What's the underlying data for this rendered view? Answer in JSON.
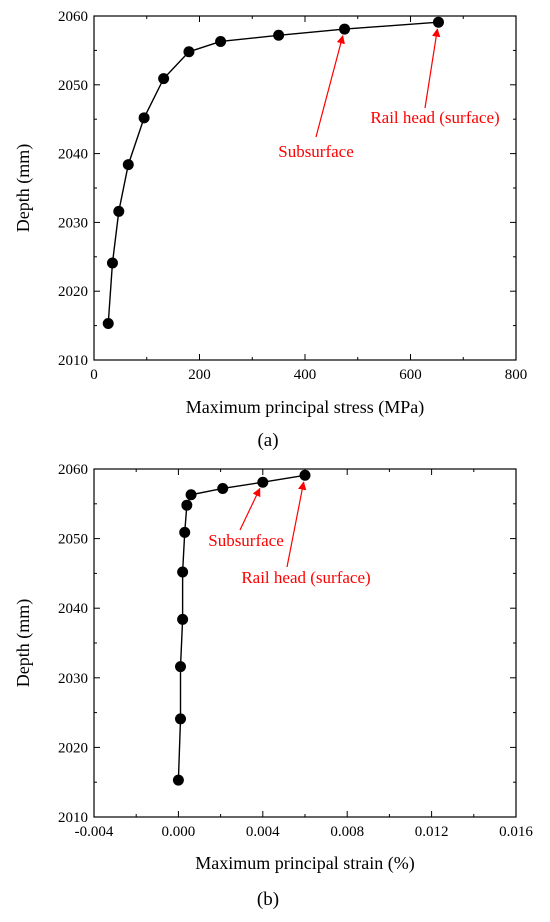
{
  "chart_data": [
    {
      "type": "line",
      "panel_label": "(a)",
      "xlabel": "Maximum principal stress (MPa)",
      "ylabel": "Depth (mm)",
      "xlim": [
        0,
        800
      ],
      "ylim": [
        2010,
        2060
      ],
      "xticks": [
        "0",
        "200",
        "400",
        "600",
        "800"
      ],
      "yticks": [
        "2010",
        "2020",
        "2030",
        "2040",
        "2050",
        "2060"
      ],
      "grid": false,
      "series": [
        {
          "x": [
            27,
            35,
            47,
            65,
            95,
            132,
            180,
            240,
            350,
            475,
            653
          ],
          "y": [
            2015.3,
            2024.1,
            2031.6,
            2038.4,
            2045.2,
            2050.9,
            2054.8,
            2056.3,
            2057.2,
            2058.1,
            2059.1
          ]
        }
      ],
      "annotations": [
        {
          "text": "Rail head (surface)",
          "target_index": 10
        },
        {
          "text": "Subsurface",
          "target_index": 9
        }
      ]
    },
    {
      "type": "line",
      "panel_label": "(b)",
      "xlabel": "Maximum principal strain (%)",
      "ylabel": "Depth (mm)",
      "xlim": [
        -0.004,
        0.016
      ],
      "ylim": [
        2010,
        2060
      ],
      "xticks": [
        "-0.004",
        "0.000",
        "0.004",
        "0.008",
        "0.012",
        "0.016"
      ],
      "yticks": [
        "2010",
        "2020",
        "2030",
        "2040",
        "2050",
        "2060"
      ],
      "grid": false,
      "series": [
        {
          "x": [
            0.0,
            0.0001,
            0.0001,
            0.0002,
            0.0002,
            0.0003,
            0.0004,
            0.0006,
            0.0021,
            0.004,
            0.006
          ],
          "y": [
            2015.3,
            2024.1,
            2031.6,
            2038.4,
            2045.2,
            2050.9,
            2054.8,
            2056.3,
            2057.2,
            2058.1,
            2059.1
          ]
        }
      ],
      "annotations": [
        {
          "text": "Subsurface",
          "target_index": 9
        },
        {
          "text": "Rail head (surface)",
          "target_index": 10
        }
      ]
    }
  ]
}
